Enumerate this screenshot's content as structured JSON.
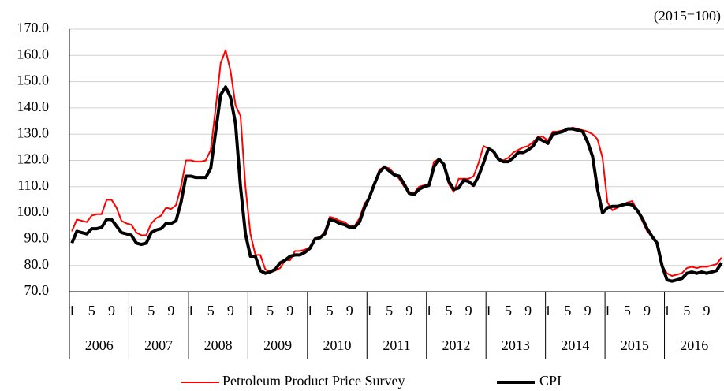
{
  "chart_data": {
    "type": "line",
    "annotation": "(2015=100)",
    "categories": [
      "1",
      null,
      null,
      null,
      "5",
      null,
      null,
      null,
      "9",
      null,
      null,
      null,
      "1",
      null,
      null,
      null,
      "5",
      null,
      null,
      null,
      "9",
      null,
      null,
      null,
      "1",
      null,
      null,
      null,
      "5",
      null,
      null,
      null,
      "9",
      null,
      null,
      null,
      "1",
      null,
      null,
      null,
      "5",
      null,
      null,
      null,
      "9",
      null,
      null,
      null,
      "1",
      null,
      null,
      null,
      "5",
      null,
      null,
      null,
      "9",
      null,
      null,
      null,
      "1",
      null,
      null,
      null,
      "5",
      null,
      null,
      null,
      "9",
      null,
      null,
      null,
      "1",
      null,
      null,
      null,
      "5",
      null,
      null,
      null,
      "9",
      null,
      null,
      null,
      "1",
      null,
      null,
      null,
      "5",
      null,
      null,
      null,
      "9",
      null,
      null,
      null,
      "1",
      null,
      null,
      null,
      "5",
      null,
      null,
      null,
      "9",
      null,
      null,
      null,
      "1",
      null,
      null,
      null,
      "5",
      null,
      null,
      null,
      "9",
      null,
      null,
      null,
      "1",
      null,
      null,
      null,
      "5",
      null,
      null,
      null,
      "9",
      null,
      null,
      null
    ],
    "year_labels": [
      "2006",
      "2007",
      "2008",
      "2009",
      "2010",
      "2011",
      "2012",
      "2013",
      "2014",
      "2015",
      "2016"
    ],
    "series": [
      {
        "name": "Petroleum Product Price Survey",
        "color": "#ff0000",
        "width": 2,
        "values": [
          93,
          97.5,
          97,
          96.5,
          99,
          99.5,
          99.5,
          105,
          105,
          102,
          97,
          96,
          95.5,
          92.5,
          91.5,
          91.5,
          96,
          98,
          99,
          102,
          101.5,
          103,
          110,
          120,
          120,
          119.5,
          119.5,
          120,
          124,
          140,
          157,
          162,
          154,
          141,
          137,
          110,
          92,
          84,
          84,
          78.5,
          77.5,
          78,
          79,
          82,
          82,
          85.5,
          85.5,
          86,
          87,
          90.5,
          90.5,
          93,
          98.5,
          98,
          97,
          96.5,
          95,
          95,
          98,
          103.5,
          106,
          111,
          116.5,
          117.5,
          117,
          115,
          113,
          110,
          108,
          107.5,
          110,
          110.5,
          111,
          119.5,
          120.5,
          118,
          111,
          108,
          113,
          113,
          113,
          114,
          119,
          125.5,
          124.5,
          123,
          120.5,
          120,
          121,
          123,
          124,
          125,
          125.5,
          127,
          129,
          129,
          127.5,
          131,
          131,
          131.5,
          132,
          132.5,
          132,
          131.5,
          131,
          130,
          128,
          121,
          104,
          101,
          102,
          103,
          104,
          104.5,
          101,
          97,
          93,
          91,
          88.5,
          80,
          77,
          76,
          76.5,
          77,
          79,
          79.5,
          79,
          79.5,
          79.5,
          80,
          80.5,
          83
        ]
      },
      {
        "name": "CPI",
        "color": "#000000",
        "width": 4,
        "values": [
          88.5,
          93,
          92.5,
          92,
          94,
          94,
          94.5,
          97.5,
          97.5,
          95,
          92.5,
          92,
          91.5,
          88.5,
          88,
          88.5,
          92.5,
          93.5,
          94,
          96,
          96,
          97,
          104,
          114,
          114,
          113.5,
          113.5,
          113.5,
          117,
          131,
          145,
          148,
          144,
          134,
          110,
          92,
          83.5,
          83.5,
          78,
          77,
          77.5,
          78.5,
          81,
          82,
          83.5,
          84,
          84,
          85,
          86.5,
          90,
          90.5,
          92,
          97.5,
          97,
          96,
          95.5,
          94.5,
          94.5,
          96.5,
          102,
          106,
          111,
          115.5,
          117.5,
          116,
          114.5,
          114,
          111,
          107.5,
          107,
          109,
          110,
          110.5,
          117.5,
          120.5,
          118.5,
          112,
          109,
          109.5,
          112.5,
          112,
          110.5,
          114,
          119,
          124.5,
          123.5,
          120.5,
          119.5,
          119.5,
          121,
          123,
          123,
          124,
          125.5,
          128.5,
          127.5,
          126.5,
          130,
          130.5,
          131,
          132,
          132,
          131.5,
          131,
          127,
          121.5,
          109,
          100,
          102,
          102.5,
          102.5,
          103,
          103.5,
          103,
          101,
          98,
          94,
          91,
          88.5,
          80,
          74.5,
          74,
          74.5,
          75,
          77,
          77.5,
          77,
          77.5,
          77,
          77.5,
          78,
          81
        ]
      }
    ],
    "ylim": [
      70,
      170
    ],
    "yticks": [
      {
        "value": 70,
        "label": "70.0"
      },
      {
        "value": 80,
        "label": "80.0"
      },
      {
        "value": 90,
        "label": "90.0"
      },
      {
        "value": 100,
        "label": "100.0"
      },
      {
        "value": 110,
        "label": "110.0"
      },
      {
        "value": 120,
        "label": "120.0"
      },
      {
        "value": 130,
        "label": "130.0"
      },
      {
        "value": 140,
        "label": "140.0"
      },
      {
        "value": 150,
        "label": "150.0"
      },
      {
        "value": 160,
        "label": "160.0"
      },
      {
        "value": 170,
        "label": "170.0"
      }
    ],
    "grid": true,
    "legend": "bottom"
  }
}
